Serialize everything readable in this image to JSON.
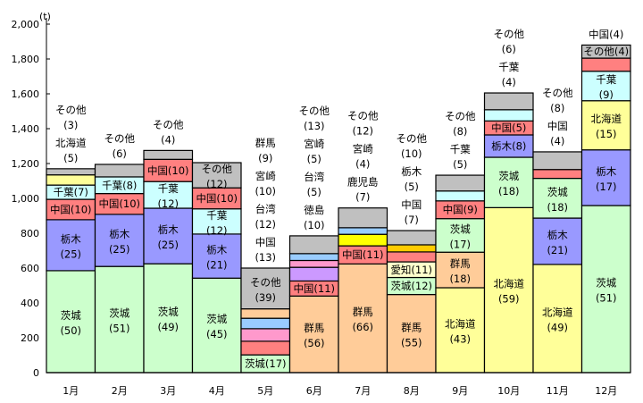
{
  "chart_data": {
    "type": "bar",
    "stacked": true,
    "title": "",
    "ylabel": "(t)",
    "xlabel": "",
    "ylim": [
      0,
      2000
    ],
    "yticks": [
      0,
      200,
      400,
      600,
      800,
      1000,
      1200,
      1400,
      1600,
      1800,
      2000
    ],
    "ytick_labels": [
      "0",
      "200",
      "400",
      "600",
      "800",
      "1,000",
      "1,200",
      "1,400",
      "1,600",
      "1,800",
      "2,000"
    ],
    "segment_values_unit": "percent of monthly total",
    "colors": {
      "茨城": "#ccffcc",
      "栃木": "#9999ff",
      "中国": "#ff8080",
      "千葉": "#ccffff",
      "北海道": "#ffff99",
      "その他": "#c0c0c0",
      "群馬": "#ffcc99",
      "宮崎": "#99ccff",
      "台湾": "#ff99cc",
      "徳島": "#cc99ff",
      "鹿児島": "#ffff00",
      "愛知": "#ffffcc",
      "栃木_aug": "#ffcc00"
    },
    "months": [
      {
        "label": "1月",
        "total": 1170,
        "segments": [
          {
            "name": "茨城",
            "pct": 50,
            "mode": "i2"
          },
          {
            "name": "栃木",
            "pct": 25,
            "mode": "i2"
          },
          {
            "name": "中国",
            "pct": 10,
            "mode": "i1"
          },
          {
            "name": "千葉",
            "pct": 7,
            "mode": "i1"
          },
          {
            "name": "北海道",
            "pct": 5,
            "mode": "a2"
          },
          {
            "name": "その他",
            "pct": 3,
            "mode": "a2"
          }
        ]
      },
      {
        "label": "2月",
        "total": 1195,
        "segments": [
          {
            "name": "茨城",
            "pct": 51,
            "mode": "i2"
          },
          {
            "name": "栃木",
            "pct": 25,
            "mode": "i2"
          },
          {
            "name": "中国",
            "pct": 10,
            "mode": "i1"
          },
          {
            "name": "千葉",
            "pct": 8,
            "mode": "i1"
          },
          {
            "name": "その他",
            "pct": 6,
            "mode": "a2"
          }
        ]
      },
      {
        "label": "3月",
        "total": 1275,
        "segments": [
          {
            "name": "茨城",
            "pct": 49,
            "mode": "i2"
          },
          {
            "name": "栃木",
            "pct": 25,
            "mode": "i2"
          },
          {
            "name": "千葉",
            "pct": 12,
            "mode": "i2"
          },
          {
            "name": "中国",
            "pct": 10,
            "mode": "i1"
          },
          {
            "name": "その他",
            "pct": 4,
            "mode": "a2"
          }
        ]
      },
      {
        "label": "4月",
        "total": 1205,
        "segments": [
          {
            "name": "茨城",
            "pct": 45,
            "mode": "i2"
          },
          {
            "name": "栃木",
            "pct": 21,
            "mode": "i2"
          },
          {
            "name": "千葉",
            "pct": 12,
            "mode": "i2"
          },
          {
            "name": "中国",
            "pct": 10,
            "mode": "i1"
          },
          {
            "name": "その他",
            "pct": 12,
            "mode": "i2"
          }
        ]
      },
      {
        "label": "5月",
        "total": 600,
        "segments": [
          {
            "name": "茨城",
            "pct": 17,
            "mode": "i1"
          },
          {
            "name": "中国",
            "pct": 13,
            "mode": "a2"
          },
          {
            "name": "台湾",
            "pct": 12,
            "mode": "a2"
          },
          {
            "name": "宮崎",
            "pct": 10,
            "mode": "a2"
          },
          {
            "name": "群馬",
            "pct": 9,
            "mode": "a2"
          },
          {
            "name": "その他",
            "pct": 39,
            "mode": "i2"
          }
        ]
      },
      {
        "label": "6月",
        "total": 785,
        "segments": [
          {
            "name": "群馬",
            "pct": 56,
            "mode": "i2"
          },
          {
            "name": "中国",
            "pct": 11,
            "mode": "i1"
          },
          {
            "name": "徳島",
            "pct": 10,
            "mode": "a2"
          },
          {
            "name": "台湾",
            "pct": 5,
            "mode": "a2"
          },
          {
            "name": "宮崎",
            "pct": 5,
            "mode": "a2"
          },
          {
            "name": "その他",
            "pct": 13,
            "mode": "a2"
          }
        ]
      },
      {
        "label": "7月",
        "total": 945,
        "segments": [
          {
            "name": "群馬",
            "pct": 66,
            "mode": "i2"
          },
          {
            "name": "中国",
            "pct": 11,
            "mode": "i1"
          },
          {
            "name": "鹿児島",
            "pct": 7,
            "mode": "a2"
          },
          {
            "name": "宮崎",
            "pct": 4,
            "mode": "a2"
          },
          {
            "name": "その他",
            "pct": 12,
            "mode": "a2"
          }
        ]
      },
      {
        "label": "8月",
        "total": 815,
        "segments": [
          {
            "name": "群馬",
            "pct": 55,
            "mode": "i2"
          },
          {
            "name": "茨城",
            "pct": 12,
            "mode": "i1"
          },
          {
            "name": "愛知",
            "pct": 11,
            "mode": "i1"
          },
          {
            "name": "中国",
            "pct": 7,
            "mode": "a2"
          },
          {
            "name": "栃木",
            "pct": 5,
            "mode": "a2",
            "color_key": "栃木_aug"
          },
          {
            "name": "その他",
            "pct": 10,
            "mode": "a2"
          }
        ]
      },
      {
        "label": "9月",
        "total": 1133,
        "segments": [
          {
            "name": "北海道",
            "pct": 43,
            "mode": "i2"
          },
          {
            "name": "群馬",
            "pct": 18,
            "mode": "i2"
          },
          {
            "name": "茨城",
            "pct": 17,
            "mode": "i2"
          },
          {
            "name": "中国",
            "pct": 9,
            "mode": "i1"
          },
          {
            "name": "千葉",
            "pct": 5,
            "mode": "a2"
          },
          {
            "name": "その他",
            "pct": 8,
            "mode": "a2"
          }
        ]
      },
      {
        "label": "10月",
        "total": 1605,
        "segments": [
          {
            "name": "北海道",
            "pct": 59,
            "mode": "i2"
          },
          {
            "name": "茨城",
            "pct": 18,
            "mode": "i2"
          },
          {
            "name": "栃木",
            "pct": 8,
            "mode": "i1"
          },
          {
            "name": "中国",
            "pct": 5,
            "mode": "i1"
          },
          {
            "name": "千葉",
            "pct": 4,
            "mode": "a2"
          },
          {
            "name": "その他",
            "pct": 6,
            "mode": "a2"
          }
        ]
      },
      {
        "label": "11月",
        "total": 1267,
        "segments": [
          {
            "name": "北海道",
            "pct": 49,
            "mode": "i2"
          },
          {
            "name": "栃木",
            "pct": 21,
            "mode": "i2"
          },
          {
            "name": "茨城",
            "pct": 18,
            "mode": "i2"
          },
          {
            "name": "中国",
            "pct": 4,
            "mode": "a2"
          },
          {
            "name": "その他",
            "pct": 8,
            "mode": "a2"
          }
        ]
      },
      {
        "label": "12月",
        "total": 1880,
        "segments": [
          {
            "name": "茨城",
            "pct": 51,
            "mode": "i2"
          },
          {
            "name": "栃木",
            "pct": 17,
            "mode": "i2"
          },
          {
            "name": "北海道",
            "pct": 15,
            "mode": "i2"
          },
          {
            "name": "千葉",
            "pct": 9,
            "mode": "i2"
          },
          {
            "name": "中国",
            "pct": 4,
            "mode": "a1"
          },
          {
            "name": "その他",
            "pct": 4,
            "mode": "i1"
          }
        ]
      }
    ]
  }
}
